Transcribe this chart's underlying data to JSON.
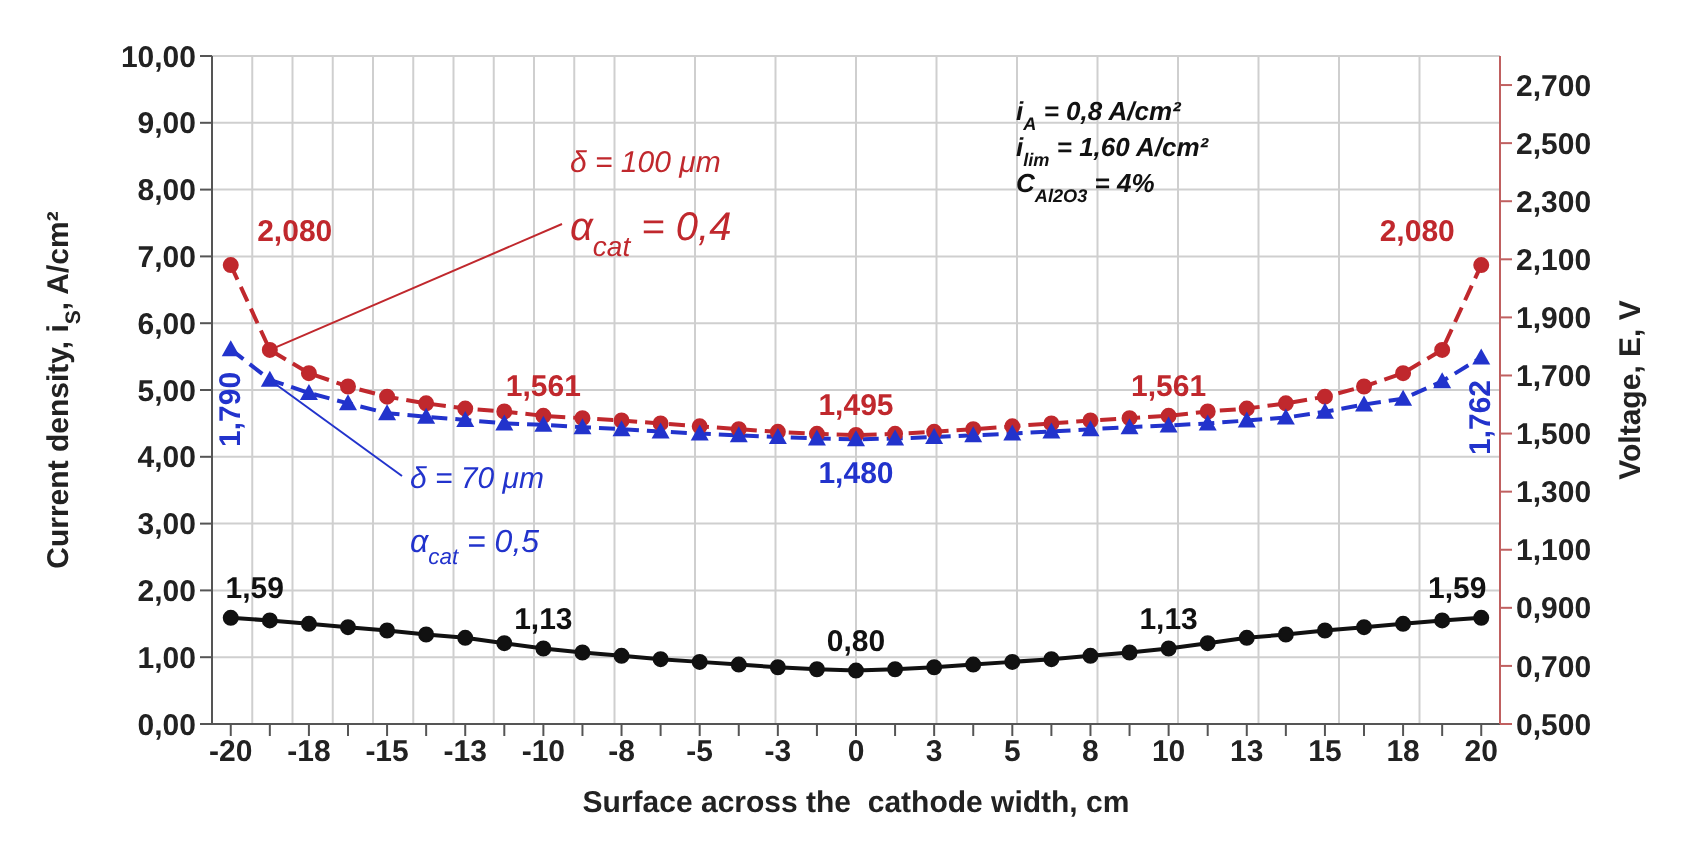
{
  "chart_data": {
    "type": "line",
    "xlabel": "Surface across the  cathode width, cm",
    "ylabel": "Current density, i$_{S}$, A/cm²",
    "y2label": "Voltage, E, V",
    "x": [
      -20,
      -18.75,
      -17.5,
      -16.25,
      -15,
      -13.75,
      -12.5,
      -11.25,
      -10,
      -8.75,
      -7.5,
      -6.25,
      -5,
      -3.75,
      -2.5,
      -1.25,
      0,
      1.25,
      2.5,
      3.75,
      5,
      6.25,
      7.5,
      8.75,
      10,
      11.25,
      12.5,
      13.75,
      15,
      16.25,
      17.5,
      18.75,
      20
    ],
    "series": [
      {
        "color": "#c0282d",
        "axis": "y2",
        "marker": "circle",
        "line_style": "dashed",
        "values": [
          2.08,
          1.788,
          1.708,
          1.662,
          1.627,
          1.604,
          1.586,
          1.576,
          1.561,
          1.553,
          1.545,
          1.535,
          1.525,
          1.515,
          1.506,
          1.499,
          1.495,
          1.499,
          1.506,
          1.515,
          1.525,
          1.535,
          1.545,
          1.553,
          1.561,
          1.576,
          1.586,
          1.604,
          1.627,
          1.662,
          1.708,
          1.788,
          2.08
        ],
        "value_labels": [
          "2,080",
          null,
          null,
          null,
          null,
          null,
          null,
          null,
          "1,561",
          null,
          null,
          null,
          null,
          null,
          null,
          null,
          "1,495",
          null,
          null,
          null,
          null,
          null,
          null,
          null,
          "1,561",
          null,
          null,
          null,
          null,
          null,
          null,
          null,
          "2,080"
        ]
      },
      {
        "color": "#2233cc",
        "axis": "y2",
        "marker": "triangle",
        "line_style": "dashed",
        "values": [
          1.79,
          1.685,
          1.64,
          1.604,
          1.57,
          1.558,
          1.547,
          1.535,
          1.53,
          1.522,
          1.515,
          1.507,
          1.5,
          1.494,
          1.488,
          1.483,
          1.48,
          1.483,
          1.488,
          1.494,
          1.5,
          1.507,
          1.515,
          1.522,
          1.528,
          1.535,
          1.545,
          1.555,
          1.575,
          1.6,
          1.62,
          1.68,
          1.762
        ],
        "value_labels": [
          "1,790",
          null,
          null,
          null,
          null,
          null,
          null,
          null,
          null,
          null,
          null,
          null,
          null,
          null,
          null,
          null,
          "1,480",
          null,
          null,
          null,
          null,
          null,
          null,
          null,
          null,
          null,
          null,
          null,
          null,
          null,
          null,
          null,
          "1,762"
        ]
      },
      {
        "color": "#111111",
        "axis": "y",
        "marker": "circle",
        "line_style": "solid",
        "values": [
          1.59,
          1.55,
          1.5,
          1.45,
          1.4,
          1.34,
          1.29,
          1.21,
          1.13,
          1.07,
          1.02,
          0.97,
          0.93,
          0.89,
          0.85,
          0.82,
          0.8,
          0.82,
          0.85,
          0.89,
          0.93,
          0.97,
          1.02,
          1.07,
          1.13,
          1.21,
          1.29,
          1.34,
          1.4,
          1.45,
          1.5,
          1.55,
          1.59
        ],
        "value_labels": [
          "1,59",
          null,
          null,
          null,
          null,
          null,
          null,
          null,
          "1,13",
          null,
          null,
          null,
          null,
          null,
          null,
          null,
          "0,80",
          null,
          null,
          null,
          null,
          null,
          null,
          null,
          "1,13",
          null,
          null,
          null,
          null,
          null,
          null,
          null,
          "1,59"
        ]
      }
    ],
    "xlim": [
      -20.6,
      20.6
    ],
    "xticks": [
      -20,
      {
        "value": -18.75,
        "label": null
      },
      {
        "value": -17.5,
        "label": "-18"
      },
      {
        "value": -16.25,
        "label": null
      },
      -15,
      {
        "value": -13.75,
        "label": null
      },
      {
        "value": -12.5,
        "label": "-13"
      },
      {
        "value": -11.25,
        "label": null
      },
      -10,
      {
        "value": -8.75,
        "label": null
      },
      {
        "value": -7.5,
        "label": "-8"
      },
      {
        "value": -6.25,
        "label": null
      },
      -5,
      {
        "value": -3.75,
        "label": null
      },
      {
        "value": -2.5,
        "label": "-3"
      },
      {
        "value": -1.25,
        "label": null
      },
      0,
      {
        "value": 1.25,
        "label": null
      },
      {
        "value": 2.5,
        "label": "3"
      },
      {
        "value": 3.75,
        "label": null
      },
      5,
      {
        "value": 6.25,
        "label": null
      },
      {
        "value": 7.5,
        "label": "8"
      },
      {
        "value": 8.75,
        "label": null
      },
      10,
      {
        "value": 11.25,
        "label": null
      },
      {
        "value": 12.5,
        "label": "13"
      },
      {
        "value": 13.75,
        "label": null
      },
      15,
      {
        "value": 16.25,
        "label": null
      },
      {
        "value": 17.5,
        "label": "18"
      },
      {
        "value": 18.75,
        "label": null
      },
      20
    ],
    "ylim": [
      0,
      10
    ],
    "yticks": [
      {
        "value": 0,
        "label": "0,00"
      },
      {
        "value": 1,
        "label": "1,00"
      },
      {
        "value": 2,
        "label": "2,00"
      },
      {
        "value": 3,
        "label": "3,00"
      },
      {
        "value": 4,
        "label": "4,00"
      },
      {
        "value": 5,
        "label": "5,00"
      },
      {
        "value": 6,
        "label": "6,00"
      },
      {
        "value": 7,
        "label": "7,00"
      },
      {
        "value": 8,
        "label": "8,00"
      },
      {
        "value": 9,
        "label": "9,00"
      },
      {
        "value": 10,
        "label": "10,00"
      }
    ],
    "y2lim": [
      0.5,
      2.8
    ],
    "y2ticks": [
      {
        "value": 0.5,
        "label": "0,500"
      },
      {
        "value": 0.7,
        "label": "0,700"
      },
      {
        "value": 0.9,
        "label": "0,900"
      },
      {
        "value": 1.1,
        "label": "1,100"
      },
      {
        "value": 1.3,
        "label": "1,300"
      },
      {
        "value": 1.5,
        "label": "1,500"
      },
      {
        "value": 1.7,
        "label": "1,700"
      },
      {
        "value": 1.9,
        "label": "1,900"
      },
      {
        "value": 2.1,
        "label": "2,100"
      },
      {
        "value": 2.3,
        "label": "2,300"
      },
      {
        "value": 2.5,
        "label": "2,500"
      },
      {
        "value": 2.7,
        "label": "2,700"
      }
    ],
    "grid": true,
    "annotations": [
      "δ = 100 μm",
      {
        "text": "α$_{cat}$ = 0,4",
        "x": -18.75,
        "y": 5.6
      },
      {
        "text": "δ = 70 μm",
        "x": -18.75,
        "y": 5.15
      },
      "α$_{cat}$ = 0,5",
      "i$_{A}$ = 0,8 A/cm²",
      "i$_{lim}$ = 1,60 A/cm²",
      "C$_{Al2O3}$ = 4%"
    ]
  }
}
